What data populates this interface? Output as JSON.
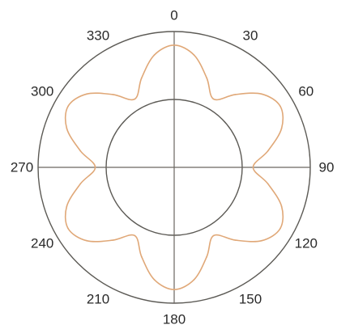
{
  "chart_data": {
    "type": "polar-line",
    "angle_zero": "top",
    "angle_direction": "clockwise",
    "angle_unit": "degrees",
    "angle_tick_labels": [
      "0",
      "30",
      "60",
      "90",
      "120",
      "150",
      "180",
      "210",
      "240",
      "270",
      "300",
      "330"
    ],
    "radial_range": [
      0,
      1
    ],
    "reference_circles": [
      0.5,
      1.0
    ],
    "grid": "two concentric circles plus vertical and horizontal axis lines",
    "series": [
      {
        "color": "#e0a878",
        "points": [
          {
            "angle": 0,
            "r": 0.9
          },
          {
            "angle": 10,
            "r": 0.84
          },
          {
            "angle": 20,
            "r": 0.7
          },
          {
            "angle": 30,
            "r": 0.58
          },
          {
            "angle": 40,
            "r": 0.7
          },
          {
            "angle": 50,
            "r": 0.84
          },
          {
            "angle": 60,
            "r": 0.9
          },
          {
            "angle": 70,
            "r": 0.84
          },
          {
            "angle": 80,
            "r": 0.7
          },
          {
            "angle": 90,
            "r": 0.58
          },
          {
            "angle": 100,
            "r": 0.7
          },
          {
            "angle": 110,
            "r": 0.84
          },
          {
            "angle": 120,
            "r": 0.9
          },
          {
            "angle": 130,
            "r": 0.84
          },
          {
            "angle": 140,
            "r": 0.7
          },
          {
            "angle": 150,
            "r": 0.58
          },
          {
            "angle": 160,
            "r": 0.7
          },
          {
            "angle": 170,
            "r": 0.84
          },
          {
            "angle": 180,
            "r": 0.9
          },
          {
            "angle": 190,
            "r": 0.84
          },
          {
            "angle": 200,
            "r": 0.7
          },
          {
            "angle": 210,
            "r": 0.58
          },
          {
            "angle": 220,
            "r": 0.7
          },
          {
            "angle": 230,
            "r": 0.84
          },
          {
            "angle": 240,
            "r": 0.9
          },
          {
            "angle": 250,
            "r": 0.84
          },
          {
            "angle": 260,
            "r": 0.7
          },
          {
            "angle": 270,
            "r": 0.58
          },
          {
            "angle": 280,
            "r": 0.7
          },
          {
            "angle": 290,
            "r": 0.84
          },
          {
            "angle": 300,
            "r": 0.9
          },
          {
            "angle": 310,
            "r": 0.84
          },
          {
            "angle": 320,
            "r": 0.7
          },
          {
            "angle": 330,
            "r": 0.58
          },
          {
            "angle": 340,
            "r": 0.7
          },
          {
            "angle": 350,
            "r": 0.84
          }
        ]
      }
    ],
    "colors": {
      "rings": "#5c5a55",
      "axes": "#6a6660",
      "labels": "#2a2a2a"
    }
  }
}
